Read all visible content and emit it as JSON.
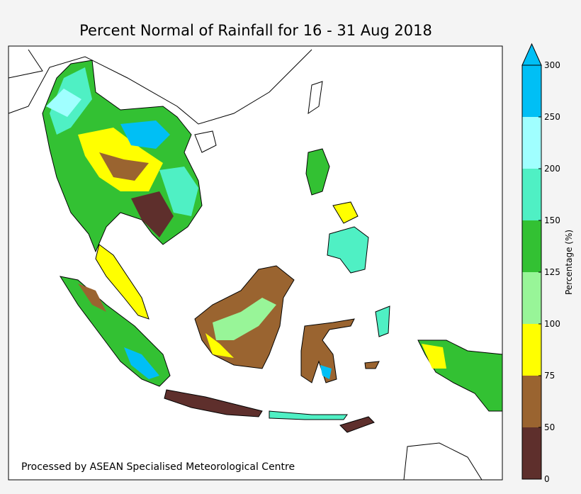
{
  "title": "Percent Normal of Rainfall for 16 - 31 Aug 2018",
  "credit": "Processed by ASEAN Specialised Meteorological Centre",
  "colorbar": {
    "label": "Percentage (%)",
    "ticks": [
      0,
      50,
      75,
      100,
      125,
      150,
      200,
      250,
      300
    ],
    "colors": [
      "#5e2f2c",
      "#9a6430",
      "#ffff00",
      "#98f598",
      "#33c133",
      "#4ff0c4",
      "#a0ffff",
      "#00bff5"
    ]
  }
}
